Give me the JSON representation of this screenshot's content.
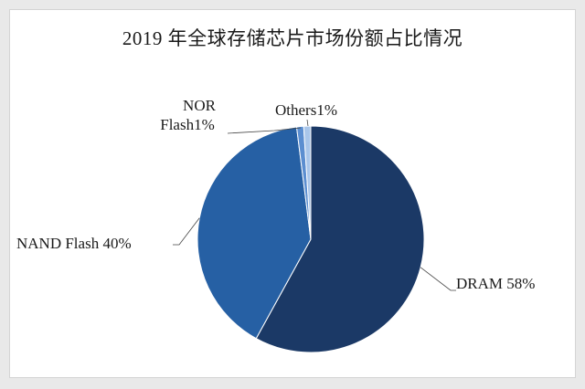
{
  "chart_data": {
    "type": "pie",
    "title": "2019 年全球存储芯片市场份额占比情况",
    "slices": [
      {
        "label": "DRAM 58%",
        "value": 58,
        "color": "#1b3966"
      },
      {
        "label": "NAND Flash 40%",
        "value": 40,
        "color": "#2660a4"
      },
      {
        "label": "NOR Flash1%",
        "label_lines": [
          "NOR",
          "Flash1%"
        ],
        "value": 1,
        "color": "#5b8ed0"
      },
      {
        "label": "Others1%",
        "value": 1,
        "color": "#a9c6ea"
      }
    ],
    "start": "12 o'clock",
    "direction": "clockwise",
    "legend": "none",
    "labels": "outside-with-leader-lines"
  }
}
